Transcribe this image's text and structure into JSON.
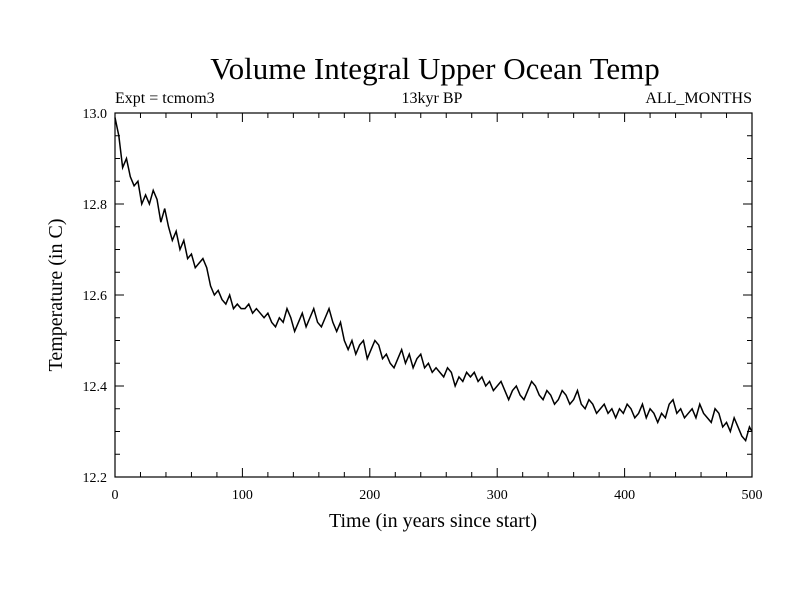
{
  "chart_data": {
    "type": "line",
    "title": "Volume Integral Upper Ocean Temp",
    "subtitle_left": "Expt = tcmom3",
    "subtitle_center": "13kyr BP",
    "subtitle_right": "ALL_MONTHS",
    "xlabel": "Time (in years since start)",
    "ylabel": "Temperature (in C)",
    "xlim": [
      0,
      500
    ],
    "ylim": [
      12.2,
      13.0
    ],
    "x_ticks": [
      0,
      100,
      200,
      300,
      400,
      500
    ],
    "x_tick_labels": [
      "0",
      "100",
      "200",
      "300",
      "400",
      "500"
    ],
    "y_ticks": [
      12.2,
      12.4,
      12.6,
      12.8,
      13.0
    ],
    "y_tick_labels": [
      "12.2",
      "12.4",
      "12.6",
      "12.8",
      "13.0"
    ],
    "grid": false,
    "line_color": "#000000",
    "series": [
      {
        "x": [
          0,
          3,
          6,
          9,
          12,
          15,
          18,
          21,
          24,
          27,
          30,
          33,
          36,
          39,
          42,
          45,
          48,
          51,
          54,
          57,
          60,
          63,
          66,
          69,
          72,
          75,
          78,
          81,
          84,
          87,
          90,
          93,
          96,
          99,
          102,
          105,
          108,
          111,
          114,
          117,
          120,
          123,
          126,
          129,
          132,
          135,
          138,
          141,
          144,
          147,
          150,
          153,
          156,
          159,
          162,
          165,
          168,
          171,
          174,
          177,
          180,
          183,
          186,
          189,
          192,
          195,
          198,
          201,
          204,
          207,
          210,
          213,
          216,
          219,
          222,
          225,
          228,
          231,
          234,
          237,
          240,
          243,
          246,
          249,
          252,
          255,
          258,
          261,
          264,
          267,
          270,
          273,
          276,
          279,
          282,
          285,
          288,
          291,
          294,
          297,
          300,
          303,
          306,
          309,
          312,
          315,
          318,
          321,
          324,
          327,
          330,
          333,
          336,
          339,
          342,
          345,
          348,
          351,
          354,
          357,
          360,
          363,
          366,
          369,
          372,
          375,
          378,
          381,
          384,
          387,
          390,
          393,
          396,
          399,
          402,
          405,
          408,
          411,
          414,
          417,
          420,
          423,
          426,
          429,
          432,
          435,
          438,
          441,
          444,
          447,
          450,
          453,
          456,
          459,
          462,
          465,
          468,
          471,
          474,
          477,
          480,
          483,
          486,
          489,
          492,
          495,
          498,
          500
        ],
        "values": [
          12.99,
          12.95,
          12.88,
          12.9,
          12.86,
          12.84,
          12.85,
          12.8,
          12.82,
          12.8,
          12.83,
          12.81,
          12.76,
          12.79,
          12.75,
          12.72,
          12.74,
          12.7,
          12.72,
          12.68,
          12.69,
          12.66,
          12.67,
          12.68,
          12.66,
          12.62,
          12.6,
          12.61,
          12.59,
          12.58,
          12.6,
          12.57,
          12.58,
          12.57,
          12.57,
          12.58,
          12.56,
          12.57,
          12.56,
          12.55,
          12.56,
          12.54,
          12.53,
          12.55,
          12.54,
          12.57,
          12.55,
          12.52,
          12.54,
          12.56,
          12.53,
          12.55,
          12.57,
          12.54,
          12.53,
          12.55,
          12.57,
          12.54,
          12.52,
          12.54,
          12.5,
          12.48,
          12.5,
          12.47,
          12.49,
          12.5,
          12.46,
          12.48,
          12.5,
          12.49,
          12.46,
          12.47,
          12.45,
          12.44,
          12.46,
          12.48,
          12.45,
          12.47,
          12.44,
          12.46,
          12.47,
          12.44,
          12.45,
          12.43,
          12.44,
          12.43,
          12.42,
          12.44,
          12.43,
          12.4,
          12.42,
          12.41,
          12.43,
          12.42,
          12.43,
          12.41,
          12.42,
          12.4,
          12.41,
          12.39,
          12.4,
          12.41,
          12.39,
          12.37,
          12.39,
          12.4,
          12.38,
          12.37,
          12.39,
          12.41,
          12.4,
          12.38,
          12.37,
          12.39,
          12.38,
          12.36,
          12.37,
          12.39,
          12.38,
          12.36,
          12.37,
          12.39,
          12.36,
          12.35,
          12.37,
          12.36,
          12.34,
          12.35,
          12.36,
          12.34,
          12.35,
          12.33,
          12.35,
          12.34,
          12.36,
          12.35,
          12.33,
          12.34,
          12.36,
          12.33,
          12.35,
          12.34,
          12.32,
          12.34,
          12.33,
          12.36,
          12.37,
          12.34,
          12.35,
          12.33,
          12.34,
          12.35,
          12.33,
          12.36,
          12.34,
          12.33,
          12.32,
          12.35,
          12.34,
          12.31,
          12.32,
          12.3,
          12.33,
          12.31,
          12.29,
          12.28,
          12.31,
          12.3
        ]
      }
    ]
  }
}
